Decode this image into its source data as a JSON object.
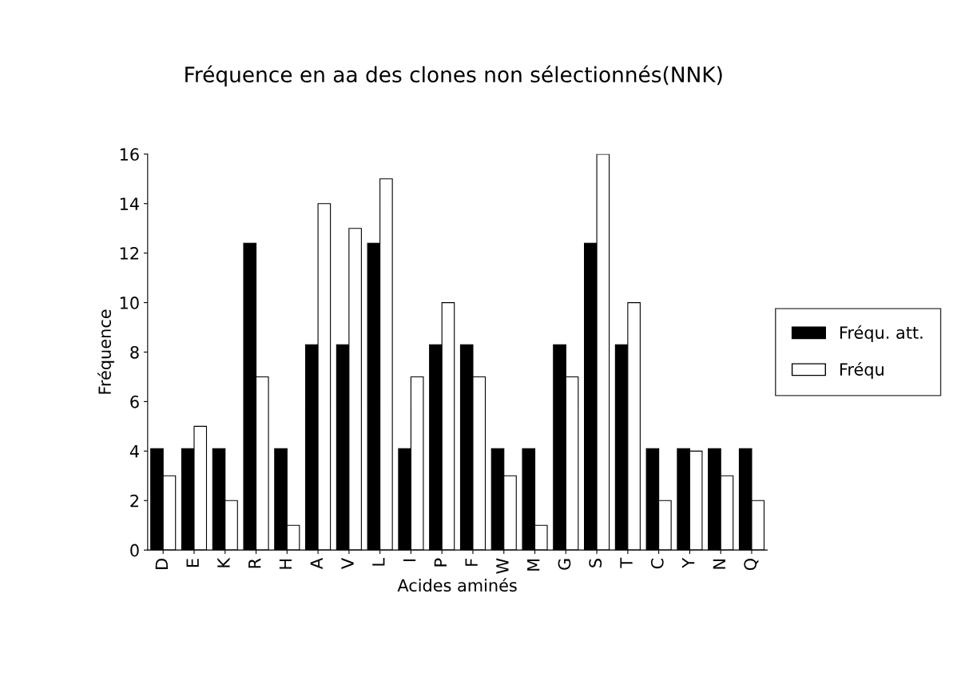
{
  "chart_data": {
    "type": "bar",
    "title": "Fréquence en aa des clones non sélectionnés(NNK)",
    "xlabel": "Acides aminés",
    "ylabel": "Fréquence",
    "categories": [
      "D",
      "E",
      "K",
      "R",
      "H",
      "A",
      "V",
      "L",
      "I",
      "P",
      "F",
      "W",
      "M",
      "G",
      "S",
      "T",
      "C",
      "Y",
      "N",
      "Q"
    ],
    "series": [
      {
        "name": "Fréqu. att.",
        "color": "#000000",
        "values": [
          4.1,
          4.1,
          4.1,
          12.4,
          4.1,
          8.3,
          8.3,
          12.4,
          4.1,
          8.3,
          8.3,
          4.1,
          4.1,
          8.3,
          12.4,
          8.3,
          4.1,
          4.1,
          4.1,
          4.1
        ]
      },
      {
        "name": "Fréqu",
        "color": "#ffffff",
        "values": [
          3,
          5,
          2,
          7,
          1,
          14,
          13,
          15,
          7,
          10,
          7,
          3,
          1,
          7,
          16,
          10,
          2,
          4,
          3,
          2
        ]
      }
    ],
    "ylim": [
      0,
      16
    ],
    "yticks": [
      0,
      2,
      4,
      6,
      8,
      10,
      12,
      14,
      16
    ],
    "grid": false,
    "legend": "right"
  }
}
